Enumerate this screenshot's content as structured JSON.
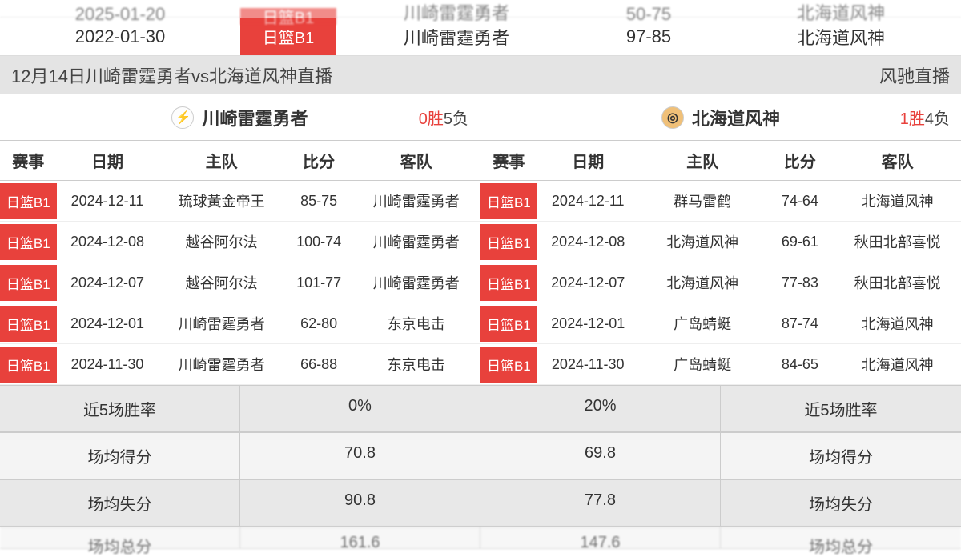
{
  "colors": {
    "accent": "#e8413c",
    "grey_bg": "#e4e4e4"
  },
  "top_rows": [
    {
      "date": "2025-01-20",
      "league": "日篮B1",
      "home": "川崎雷霆勇者",
      "score": "50-75",
      "away": "北海道风神",
      "cut": true
    },
    {
      "date": "2022-01-30",
      "league": "日篮B1",
      "home": "川崎雷霆勇者",
      "score": "97-85",
      "away": "北海道风神",
      "cut": false
    }
  ],
  "title_bar": {
    "left": "12月14日川崎雷霆勇者vs北海道风神直播",
    "right": "风驰直播"
  },
  "columns_header": {
    "league": "赛事",
    "date": "日期",
    "home": "主队",
    "score": "比分",
    "away": "客队"
  },
  "teams": [
    {
      "name": "川崎雷霆勇者",
      "logo_bg": "#fdfdfd",
      "logo_glyph": "⚡",
      "record": {
        "wins": "0胜",
        "losses": "5负"
      },
      "matches": [
        {
          "league": "日篮B1",
          "date": "2024-12-11",
          "home": "琉球黃金帝王",
          "score": "85-75",
          "away": "川崎雷霆勇者"
        },
        {
          "league": "日篮B1",
          "date": "2024-12-08",
          "home": "越谷阿尔法",
          "score": "100-74",
          "away": "川崎雷霆勇者"
        },
        {
          "league": "日篮B1",
          "date": "2024-12-07",
          "home": "越谷阿尔法",
          "score": "101-77",
          "away": "川崎雷霆勇者"
        },
        {
          "league": "日篮B1",
          "date": "2024-12-01",
          "home": "川崎雷霆勇者",
          "score": "62-80",
          "away": "东京电击"
        },
        {
          "league": "日篮B1",
          "date": "2024-11-30",
          "home": "川崎雷霆勇者",
          "score": "66-88",
          "away": "东京电击"
        }
      ]
    },
    {
      "name": "北海道风神",
      "logo_bg": "#f0c078",
      "logo_glyph": "◎",
      "record": {
        "wins": "1胜",
        "losses": "4负"
      },
      "matches": [
        {
          "league": "日篮B1",
          "date": "2024-12-11",
          "home": "群马雷鹤",
          "score": "74-64",
          "away": "北海道风神"
        },
        {
          "league": "日篮B1",
          "date": "2024-12-08",
          "home": "北海道风神",
          "score": "69-61",
          "away": "秋田北部喜悦"
        },
        {
          "league": "日篮B1",
          "date": "2024-12-07",
          "home": "北海道风神",
          "score": "77-83",
          "away": "秋田北部喜悦"
        },
        {
          "league": "日篮B1",
          "date": "2024-12-01",
          "home": "广岛蜻蜓",
          "score": "87-74",
          "away": "北海道风神"
        },
        {
          "league": "日篮B1",
          "date": "2024-11-30",
          "home": "广岛蜻蜓",
          "score": "84-65",
          "away": "北海道风神"
        }
      ]
    }
  ],
  "stats": [
    {
      "label": "近5场胜率",
      "left_value": "0%",
      "right_value": "20%"
    },
    {
      "label": "场均得分",
      "left_value": "70.8",
      "right_value": "69.8"
    },
    {
      "label": "场均失分",
      "left_value": "90.8",
      "right_value": "77.8"
    },
    {
      "label": "场均总分",
      "left_value": "161.6",
      "right_value": "147.6",
      "cut": true
    }
  ]
}
